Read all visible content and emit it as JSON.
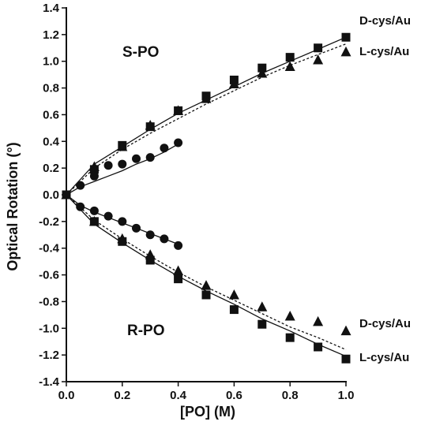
{
  "chart_data": {
    "type": "scatter",
    "title": "",
    "xlabel": "[PO] (M)",
    "ylabel": "Optical Rotation (°)",
    "xlim": [
      0.0,
      1.0
    ],
    "ylim": [
      -1.4,
      1.4
    ],
    "xticks": [
      0.0,
      0.2,
      0.4,
      0.6,
      0.8,
      1.0
    ],
    "yticks": [
      1.4,
      1.2,
      1.0,
      0.8,
      0.6,
      0.4,
      0.2,
      0.0,
      -0.2,
      -0.4,
      -0.6,
      -0.8,
      -1.0,
      -1.2,
      -1.4
    ],
    "grid": false,
    "annotations": {
      "s_po": "S-PO",
      "r_po": "R-PO",
      "s_top": "D-cys/Au",
      "s_second": "L-cys/Au",
      "r_top": "D-cys/Au",
      "r_second": "L-cys/Au"
    },
    "series": [
      {
        "marker": "square",
        "line": "solid",
        "x": [
          0,
          0.1,
          0.2,
          0.3,
          0.4,
          0.5,
          0.6,
          0.7,
          0.8,
          0.9,
          1.0
        ],
        "y": [
          0,
          0.19,
          0.37,
          0.51,
          0.63,
          0.74,
          0.86,
          0.95,
          1.03,
          1.1,
          1.18
        ],
        "fit": [
          0,
          0.23,
          0.36,
          0.49,
          0.61,
          0.71,
          0.81,
          0.91,
          1.0,
          1.09,
          1.18
        ]
      },
      {
        "marker": "triangle",
        "line": "dotted",
        "x": [
          0,
          0.1,
          0.2,
          0.3,
          0.4,
          0.5,
          0.6,
          0.7,
          0.8,
          0.9,
          1.0
        ],
        "y": [
          0,
          0.21,
          0.36,
          0.52,
          0.63,
          0.72,
          0.83,
          0.91,
          0.96,
          1.01,
          1.07
        ],
        "fit": [
          0,
          0.2,
          0.34,
          0.46,
          0.57,
          0.68,
          0.78,
          0.88,
          0.97,
          1.05,
          1.13
        ]
      },
      {
        "marker": "circle",
        "line": "solid",
        "x": [
          0,
          0.05,
          0.1,
          0.15,
          0.2,
          0.25,
          0.3,
          0.35,
          0.4
        ],
        "y": [
          0,
          0.07,
          0.14,
          0.22,
          0.23,
          0.27,
          0.28,
          0.35,
          0.39
        ],
        "fit": [
          0,
          0.06,
          0.1,
          0.14,
          0.18,
          0.23,
          0.27,
          0.32,
          0.38
        ]
      },
      {
        "marker": "circle",
        "line": "solid",
        "x": [
          0,
          0.05,
          0.1,
          0.15,
          0.2,
          0.25,
          0.3,
          0.35,
          0.4
        ],
        "y": [
          0,
          -0.09,
          -0.12,
          -0.16,
          -0.2,
          -0.25,
          -0.3,
          -0.33,
          -0.38
        ],
        "fit": [
          0,
          -0.08,
          -0.13,
          -0.17,
          -0.21,
          -0.25,
          -0.29,
          -0.33,
          -0.37
        ]
      },
      {
        "marker": "triangle",
        "line": "dotted",
        "x": [
          0,
          0.1,
          0.2,
          0.3,
          0.4,
          0.5,
          0.6,
          0.7,
          0.8,
          0.9,
          1.0
        ],
        "y": [
          0,
          -0.2,
          -0.33,
          -0.45,
          -0.57,
          -0.68,
          -0.75,
          -0.84,
          -0.91,
          -0.95,
          -1.02
        ],
        "fit": [
          0,
          -0.19,
          -0.33,
          -0.46,
          -0.58,
          -0.69,
          -0.79,
          -0.89,
          -0.99,
          -1.07,
          -1.16
        ]
      },
      {
        "marker": "square",
        "line": "solid",
        "x": [
          0,
          0.1,
          0.2,
          0.3,
          0.4,
          0.5,
          0.6,
          0.7,
          0.8,
          0.9,
          1.0
        ],
        "y": [
          0,
          -0.2,
          -0.35,
          -0.49,
          -0.63,
          -0.75,
          -0.86,
          -0.97,
          -1.07,
          -1.14,
          -1.23
        ],
        "fit": [
          0,
          -0.22,
          -0.36,
          -0.49,
          -0.61,
          -0.72,
          -0.82,
          -0.93,
          -1.02,
          -1.12,
          -1.21
        ]
      }
    ]
  }
}
